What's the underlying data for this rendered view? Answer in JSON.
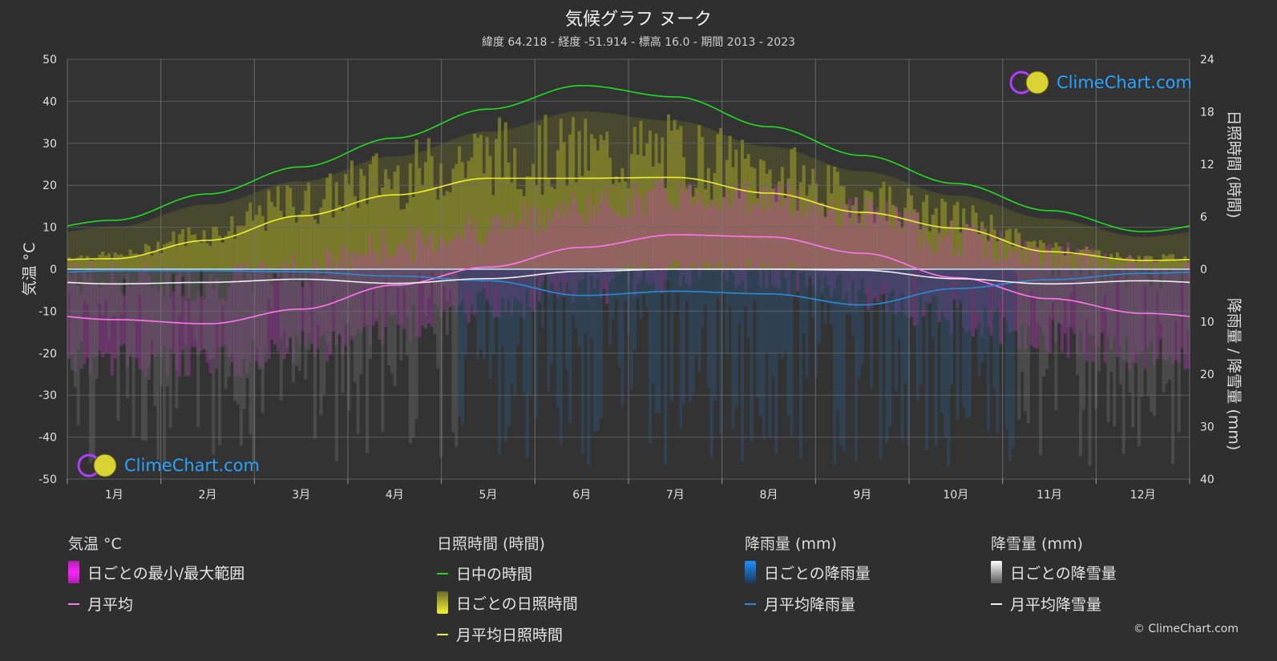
{
  "header": {
    "title": "気候グラフ ヌーク",
    "subtitle": "緯度 64.218 - 経度 -51.914 - 標高 16.0 - 期間 2013 - 2023"
  },
  "colors": {
    "daylight": "#22dd22",
    "sunshine_avg": "#eeee33",
    "sunshine_daily": "#9a9a2a",
    "temp_avg": "#ff77ee",
    "temp_range": "#cc33cc",
    "rain_avg": "#2a8cd8",
    "rain_daily": "#2a6aa0",
    "snow_avg": "#eeeeee",
    "snow_daily": "#777777",
    "watermark": "#2aa4ff"
  },
  "chart_data": {
    "type": "line",
    "x": [
      "1月",
      "2月",
      "3月",
      "4月",
      "5月",
      "6月",
      "7月",
      "8月",
      "9月",
      "10月",
      "11月",
      "12月"
    ],
    "left_axis": {
      "label": "気温 °C",
      "range": [
        -50,
        50
      ],
      "ticks": [
        50,
        40,
        30,
        20,
        10,
        0,
        -10,
        -20,
        -30,
        -40,
        -50
      ]
    },
    "right_axis_top": {
      "label": "日照時間 (時間)",
      "range": [
        0,
        24
      ],
      "ticks": [
        24,
        18,
        12,
        6,
        0
      ]
    },
    "right_axis_bottom": {
      "label": "降雨量 / 降雪量 (mm)",
      "range": [
        0,
        40
      ],
      "ticks": [
        0,
        10,
        20,
        30,
        40
      ]
    },
    "series": [
      {
        "name": "日中の時間",
        "axis": "sunshine",
        "values": [
          5.6,
          8.6,
          11.7,
          15.0,
          18.3,
          21.0,
          19.7,
          16.3,
          13.0,
          9.8,
          6.7,
          4.3
        ]
      },
      {
        "name": "月平均日照時間",
        "axis": "sunshine",
        "values": [
          1.2,
          3.3,
          6.1,
          8.5,
          10.4,
          10.4,
          10.5,
          8.7,
          6.5,
          4.7,
          2.0,
          1.0
        ]
      },
      {
        "name": "月平均",
        "axis": "temperature",
        "values": [
          -12.0,
          -13.0,
          -9.5,
          -3.8,
          0.5,
          5.2,
          8.2,
          7.7,
          3.8,
          -2.0,
          -7.0,
          -10.5
        ]
      },
      {
        "name": "月平均降雨量",
        "axis": "precipitation",
        "values": [
          0.3,
          0.3,
          0.5,
          1.3,
          2.2,
          5.0,
          4.2,
          4.7,
          6.8,
          3.7,
          2.0,
          0.8
        ]
      },
      {
        "name": "月平均降雪量",
        "axis": "precipitation",
        "values": [
          2.8,
          2.5,
          1.9,
          2.7,
          1.8,
          0.4,
          0.0,
          0.0,
          0.2,
          1.8,
          2.8,
          2.2
        ]
      }
    ],
    "grid": true
  },
  "legend": {
    "temperature": {
      "title": "気温 °C",
      "range": "日ごとの最小/最大範囲",
      "avg": "月平均"
    },
    "sunshine": {
      "title": "日照時間 (時間)",
      "daylight": "日中の時間",
      "daily": "日ごとの日照時間",
      "avg": "月平均日照時間"
    },
    "rain": {
      "title": "降雨量 (mm)",
      "daily": "日ごとの降雨量",
      "avg": "月平均降雨量"
    },
    "snow": {
      "title": "降雪量 (mm)",
      "daily": "日ごとの降雪量",
      "avg": "月平均降雪量"
    }
  },
  "watermark": {
    "text": "ClimeChart.com"
  },
  "copyright": "© ClimeChart.com"
}
